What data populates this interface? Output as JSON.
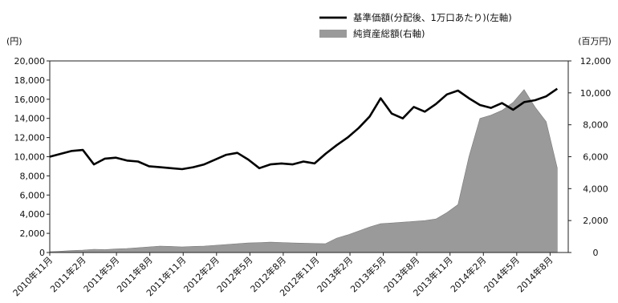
{
  "chart_data": {
    "type": "line",
    "title": "",
    "left_axis": {
      "unit": "(円)",
      "ylim": [
        0,
        20000
      ],
      "ticks": [
        "0",
        "2,000",
        "4,000",
        "6,000",
        "8,000",
        "10,000",
        "12,000",
        "14,000",
        "16,000",
        "18,000",
        "20,000"
      ]
    },
    "right_axis": {
      "unit": "(百万円)",
      "ylim": [
        0,
        12000
      ],
      "ticks": [
        "0",
        "2,000",
        "4,000",
        "6,000",
        "8,000",
        "10,000",
        "12,000"
      ]
    },
    "x_range": [
      "2010-11",
      "2014-10"
    ],
    "x_tick_labels": [
      "2010年11月",
      "2011年2月",
      "2011年5月",
      "2011年8月",
      "2011年11月",
      "2012年2月",
      "2012年5月",
      "2012年8月",
      "2012年11月",
      "2013年2月",
      "2013年5月",
      "2013年8月",
      "2013年11月",
      "2014年2月",
      "2014年5月",
      "2014年8月"
    ],
    "grid": false,
    "legend_position": "top-right",
    "series": [
      {
        "name": "基準価額(分配後、1万口あたり)(左軸)",
        "axis": "left",
        "kind": "line",
        "color": "#000000",
        "x": [
          "2010-11",
          "2010-12",
          "2011-01",
          "2011-02",
          "2011-03",
          "2011-04",
          "2011-05",
          "2011-06",
          "2011-07",
          "2011-08",
          "2011-09",
          "2011-10",
          "2011-11",
          "2011-12",
          "2012-01",
          "2012-02",
          "2012-03",
          "2012-04",
          "2012-05",
          "2012-06",
          "2012-07",
          "2012-08",
          "2012-09",
          "2012-10",
          "2012-11",
          "2012-12",
          "2013-01",
          "2013-02",
          "2013-03",
          "2013-04",
          "2013-05",
          "2013-06",
          "2013-07",
          "2013-08",
          "2013-09",
          "2013-10",
          "2013-11",
          "2013-12",
          "2014-01",
          "2014-02",
          "2014-03",
          "2014-04",
          "2014-05",
          "2014-06",
          "2014-07",
          "2014-08",
          "2014-09"
        ],
        "values": [
          10000,
          10300,
          10600,
          10700,
          9200,
          9800,
          9900,
          9600,
          9500,
          9000,
          8900,
          8800,
          8700,
          8900,
          9200,
          9700,
          10200,
          10400,
          9700,
          8800,
          9200,
          9300,
          9200,
          9500,
          9300,
          10300,
          11200,
          12000,
          13000,
          14200,
          16100,
          14500,
          14000,
          15200,
          14700,
          15500,
          16500,
          16900,
          16100,
          15400,
          15100,
          15600,
          14900,
          15700,
          15900,
          16300,
          17100
        ]
      },
      {
        "name": "純資産総額(右軸)",
        "axis": "right",
        "kind": "area",
        "color": "#9a9a9a",
        "x": [
          "2010-11",
          "2010-12",
          "2011-01",
          "2011-02",
          "2011-03",
          "2011-04",
          "2011-05",
          "2011-06",
          "2011-07",
          "2011-08",
          "2011-09",
          "2011-10",
          "2011-11",
          "2011-12",
          "2012-01",
          "2012-02",
          "2012-03",
          "2012-04",
          "2012-05",
          "2012-06",
          "2012-07",
          "2012-08",
          "2012-09",
          "2012-10",
          "2012-11",
          "2012-12",
          "2013-01",
          "2013-02",
          "2013-03",
          "2013-04",
          "2013-05",
          "2013-06",
          "2013-07",
          "2013-08",
          "2013-09",
          "2013-10",
          "2013-11",
          "2013-12",
          "2014-01",
          "2014-02",
          "2014-03",
          "2014-04",
          "2014-05",
          "2014-06",
          "2014-07",
          "2014-08",
          "2014-09"
        ],
        "values": [
          50,
          80,
          120,
          150,
          200,
          180,
          220,
          250,
          300,
          350,
          400,
          380,
          350,
          380,
          400,
          450,
          500,
          550,
          600,
          620,
          650,
          630,
          600,
          580,
          560,
          550,
          900,
          1100,
          1350,
          1600,
          1800,
          1850,
          1900,
          1950,
          2000,
          2100,
          2500,
          3000,
          6000,
          8400,
          8600,
          8900,
          9400,
          10200,
          9100,
          8200,
          5300
        ]
      }
    ]
  }
}
